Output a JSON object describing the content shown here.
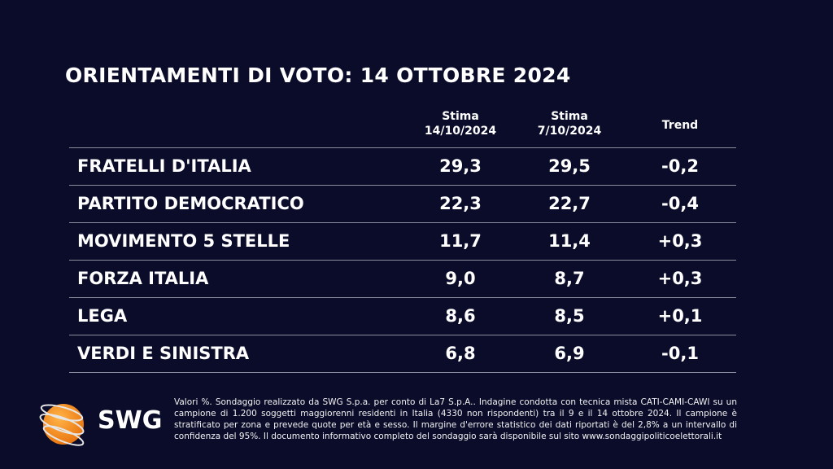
{
  "title": "ORIENTAMENTI DI VOTO: 14 OTTOBRE 2024",
  "columns": [
    {
      "line1": "Stima",
      "line2": "14/10/2024"
    },
    {
      "line1": "Stima",
      "line2": "7/10/2024"
    },
    {
      "line1": "Trend",
      "line2": ""
    }
  ],
  "rows": [
    {
      "party": "FRATELLI D'ITALIA",
      "current": "29,3",
      "previous": "29,5",
      "trend": "-0,2"
    },
    {
      "party": "PARTITO DEMOCRATICO",
      "current": "22,3",
      "previous": "22,7",
      "trend": "-0,4"
    },
    {
      "party": "MOVIMENTO 5 STELLE",
      "current": "11,7",
      "previous": "11,4",
      "trend": "+0,3"
    },
    {
      "party": "FORZA ITALIA",
      "current": "9,0",
      "previous": "8,7",
      "trend": "+0,3"
    },
    {
      "party": "LEGA",
      "current": "8,6",
      "previous": "8,5",
      "trend": "+0,1"
    },
    {
      "party": "VERDI E SINISTRA",
      "current": "6,8",
      "previous": "6,9",
      "trend": "-0,1"
    }
  ],
  "footnote": "Valori %. Sondaggio realizzato da SWG S.p.a. per conto di La7 S.p.A.. Indagine condotta con tecnica mista CATI-CAMI-CAWI su un campione di 1.200 soggetti maggiorenni residenti in Italia (4330 non rispondenti) tra il 9 e il 14 ottobre 2024. Il campione è stratificato per zona e prevede quote per età e sesso. Il margine d'errore statistico dei dati riportati è del 2,8% a un intervallo di confidenza del 95%. Il documento informativo completo del sondaggio sarà disponibile sul sito www.sondaggipoliticoelettorali.it",
  "logo": {
    "text": "SWG",
    "icon": "orange-globe-icon"
  },
  "colors": {
    "background": "#0b0c2a",
    "text": "#ffffff",
    "logo_orange": "#f7941d"
  }
}
